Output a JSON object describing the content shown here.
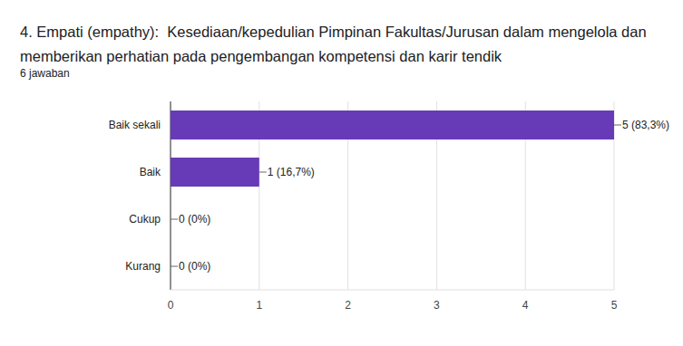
{
  "chart_data": {
    "type": "bar",
    "orientation": "horizontal",
    "title": "4. Empati (empathy):  Kesediaan/kepedulian Pimpinan Fakultas/Jurusan dalam mengelola dan memberikan perhatian pada pengembangan kompetensi dan karir tendik",
    "subtitle": "6 jawaban",
    "categories": [
      "Baik sekali",
      "Baik",
      "Cukup",
      "Kurang"
    ],
    "values": [
      5,
      1,
      0,
      0
    ],
    "value_labels": [
      "5 (83,3%)",
      "1 (16,7%)",
      "0 (0%)",
      "0 (0%)"
    ],
    "color": "#673ab7",
    "xlim": [
      0,
      5
    ],
    "xticks": [
      0,
      1,
      2,
      3,
      4,
      5
    ],
    "grid": true,
    "data_labels": true
  }
}
